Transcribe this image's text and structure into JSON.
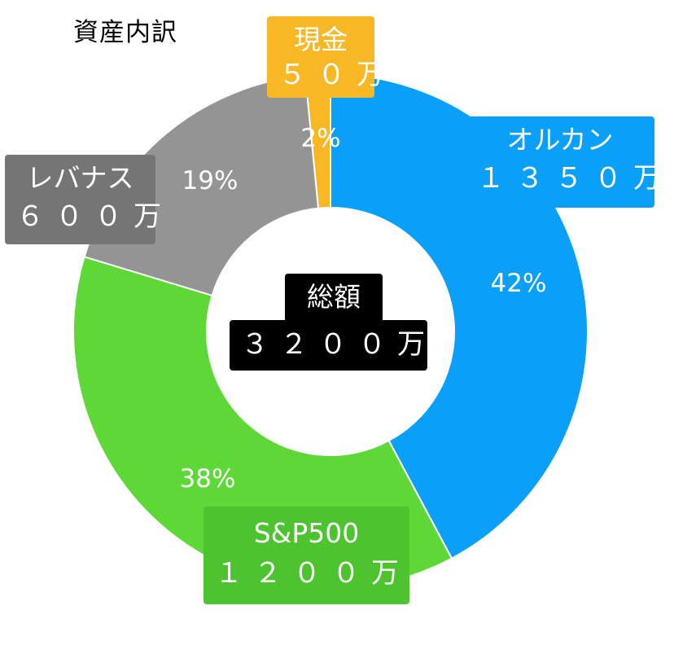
{
  "chart_data": {
    "type": "pie",
    "title": "資産内訳",
    "donut": true,
    "start_angle_deg": 0,
    "direction": "clockwise",
    "unit": "万",
    "slices": [
      {
        "name": "オルカン",
        "value": 1350,
        "pct_label": "42%",
        "amount_label": "１３５０万",
        "color": "#0A9FF9"
      },
      {
        "name": "S&P500",
        "value": 1200,
        "pct_label": "38%",
        "amount_label": "１２００万",
        "color": "#5ED837"
      },
      {
        "name": "レバナス",
        "value": 600,
        "pct_label": "19%",
        "amount_label": "６００万",
        "color": "#949494"
      },
      {
        "name": "現金",
        "value": 50,
        "pct_label": "2%",
        "amount_label": "５０万",
        "color": "#F8B825"
      }
    ],
    "total": {
      "label": "総額",
      "amount_label": "３２００万",
      "color": "#000000"
    }
  }
}
